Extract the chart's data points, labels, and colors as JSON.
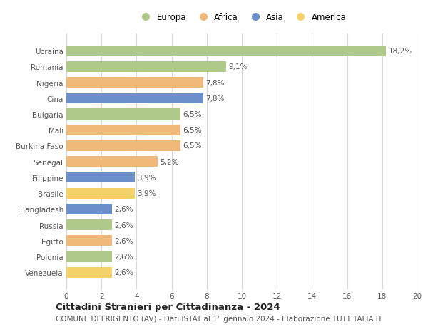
{
  "countries": [
    "Venezuela",
    "Polonia",
    "Egitto",
    "Russia",
    "Bangladesh",
    "Brasile",
    "Filippine",
    "Senegal",
    "Burkina Faso",
    "Mali",
    "Bulgaria",
    "Cina",
    "Nigeria",
    "Romania",
    "Ucraina"
  ],
  "values": [
    2.6,
    2.6,
    2.6,
    2.6,
    2.6,
    3.9,
    3.9,
    5.2,
    6.5,
    6.5,
    6.5,
    7.8,
    7.8,
    9.1,
    18.2
  ],
  "labels": [
    "2,6%",
    "2,6%",
    "2,6%",
    "2,6%",
    "2,6%",
    "3,9%",
    "3,9%",
    "5,2%",
    "6,5%",
    "6,5%",
    "6,5%",
    "7,8%",
    "7,8%",
    "9,1%",
    "18,2%"
  ],
  "continents": [
    "America",
    "Europa",
    "Africa",
    "Europa",
    "Asia",
    "America",
    "Asia",
    "Africa",
    "Africa",
    "Africa",
    "Europa",
    "Asia",
    "Africa",
    "Europa",
    "Europa"
  ],
  "continent_colors": {
    "Europa": "#aec98a",
    "Africa": "#f0b97a",
    "Asia": "#6b8fcb",
    "America": "#f5d16a"
  },
  "legend_labels": [
    "Europa",
    "Africa",
    "Asia",
    "America"
  ],
  "legend_colors": [
    "#aec98a",
    "#f0b97a",
    "#6b8fcb",
    "#f5d16a"
  ],
  "xlim": [
    0,
    20
  ],
  "xticks": [
    0,
    2,
    4,
    6,
    8,
    10,
    12,
    14,
    16,
    18,
    20
  ],
  "title": "Cittadini Stranieri per Cittadinanza - 2024",
  "subtitle": "COMUNE DI FRIGENTO (AV) - Dati ISTAT al 1° gennaio 2024 - Elaborazione TUTTITALIA.IT",
  "background_color": "#ffffff",
  "grid_color": "#d8d8d8",
  "bar_height": 0.68,
  "label_fontsize": 7.5,
  "ytick_fontsize": 7.5,
  "xtick_fontsize": 7.5,
  "title_fontsize": 9.5,
  "subtitle_fontsize": 7.5,
  "legend_fontsize": 8.5
}
